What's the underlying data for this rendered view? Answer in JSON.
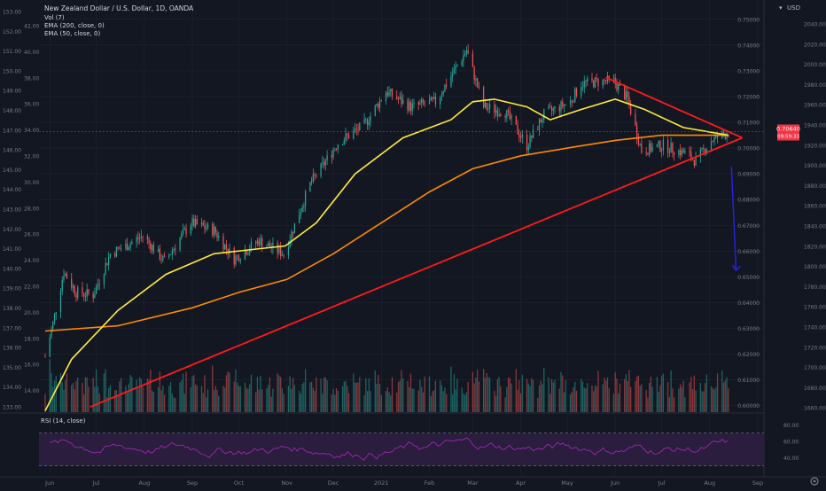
{
  "header": {
    "symbol_title": "New Zealand Dollar / U.S. Dollar, 1D, OANDA",
    "indicators": [
      "Vol (7)",
      "EMA (200, close, 0)",
      "EMA (50, close, 0)"
    ],
    "currency": "USD"
  },
  "rsi_label": "RSI (14, close)",
  "colors": {
    "background": "#131722",
    "grid": "#1f2430",
    "axis_text": "#787b86",
    "candle_up": "#26a69a",
    "candle_down": "#ef5350",
    "ema50": "#ffeb3b",
    "ema200": "#ff8a00",
    "trendline": "#ff1a1a",
    "projection_arrow": "#2323d8",
    "rsi_line": "#9c27b0",
    "rsi_band": "#2a1d3d",
    "price_label_bg": "#f23645"
  },
  "axes": {
    "left_outer_ticks": [
      "153.00",
      "152.00",
      "151.00",
      "150.00",
      "149.00",
      "148.00",
      "147.00",
      "146.00",
      "145.00",
      "144.00",
      "143.00",
      "142.00",
      "141.00",
      "140.00",
      "139.00",
      "138.00",
      "137.00",
      "136.00",
      "135.00",
      "134.00",
      "133.00"
    ],
    "left_inner_ticks": [
      "42.00",
      "40.00",
      "38.00",
      "36.00",
      "34.00",
      "32.00",
      "30.00",
      "28.00",
      "26.00",
      "24.00",
      "22.00",
      "20.00",
      "18.00",
      "16.00",
      "14.00"
    ],
    "right_price_ticks": [
      "0.75000",
      "0.74000",
      "0.73000",
      "0.72000",
      "0.71000",
      "0.70000",
      "0.69000",
      "0.68000",
      "0.67000",
      "0.66000",
      "0.65000",
      "0.64000",
      "0.63000",
      "0.62000",
      "0.61000",
      "0.60000"
    ],
    "right_outer_ticks": [
      "2040.00",
      "2020.00",
      "2000.00",
      "1980.00",
      "1960.00",
      "1940.00",
      "1920.00",
      "1900.00",
      "1880.00",
      "1860.00",
      "1840.00",
      "1820.00",
      "1800.00",
      "1780.00",
      "1760.00",
      "1740.00",
      "1720.00",
      "1700.00",
      "1680.00",
      "1660.00"
    ],
    "rsi_ticks": [
      "80.00",
      "60.00",
      "40.00"
    ],
    "x_ticks": [
      "Jun",
      "Jul",
      "Aug",
      "Sep",
      "Oct",
      "Nov",
      "Dec",
      "2021",
      "Feb",
      "Mar",
      "Apr",
      "May",
      "Jun",
      "Jul",
      "Aug",
      "Sep"
    ]
  },
  "price_labels": {
    "current": "0.70640",
    "countdown": "09:59:33"
  },
  "chart_data": {
    "type": "candlestick",
    "title": "New Zealand Dollar / U.S. Dollar, 1D, OANDA",
    "ylim": [
      0.5975,
      0.7575
    ],
    "rsi_ylim": [
      20,
      90
    ],
    "rsi_band": [
      30,
      70
    ],
    "current_price": 0.7064,
    "price_anchors": [
      [
        "2020-05-29",
        0.619
      ],
      [
        "2020-06-03",
        0.632
      ],
      [
        "2020-06-10",
        0.652
      ],
      [
        "2020-06-18",
        0.644
      ],
      [
        "2020-06-29",
        0.643
      ],
      [
        "2020-07-10",
        0.659
      ],
      [
        "2020-07-20",
        0.662
      ],
      [
        "2020-07-31",
        0.666
      ],
      [
        "2020-08-14",
        0.656
      ],
      [
        "2020-08-31",
        0.671
      ],
      [
        "2020-09-15",
        0.668
      ],
      [
        "2020-09-28",
        0.657
      ],
      [
        "2020-10-14",
        0.664
      ],
      [
        "2020-10-30",
        0.659
      ],
      [
        "2020-11-16",
        0.686
      ],
      [
        "2020-12-04",
        0.702
      ],
      [
        "2020-12-21",
        0.709
      ],
      [
        "2021-01-04",
        0.722
      ],
      [
        "2021-01-20",
        0.716
      ],
      [
        "2021-02-05",
        0.718
      ],
      [
        "2021-02-25",
        0.738
      ],
      [
        "2021-03-08",
        0.716
      ],
      [
        "2021-03-22",
        0.714
      ],
      [
        "2021-04-05",
        0.701
      ],
      [
        "2021-04-16",
        0.713
      ],
      [
        "2021-05-03",
        0.718
      ],
      [
        "2021-05-10",
        0.725
      ],
      [
        "2021-05-25",
        0.726
      ],
      [
        "2021-05-31",
        0.726
      ],
      [
        "2021-06-09",
        0.719
      ],
      [
        "2021-06-18",
        0.699
      ],
      [
        "2021-07-02",
        0.701
      ],
      [
        "2021-07-16",
        0.698
      ],
      [
        "2021-07-23",
        0.695
      ],
      [
        "2021-08-02",
        0.703
      ],
      [
        "2021-08-13",
        0.706
      ]
    ],
    "ema50_anchors": [
      [
        "2020-05-29",
        0.598
      ],
      [
        "2020-06-15",
        0.618
      ],
      [
        "2020-07-15",
        0.637
      ],
      [
        "2020-08-15",
        0.651
      ],
      [
        "2020-09-15",
        0.659
      ],
      [
        "2020-10-15",
        0.661
      ],
      [
        "2020-10-31",
        0.662
      ],
      [
        "2020-11-20",
        0.671
      ],
      [
        "2020-12-15",
        0.69
      ],
      [
        "2021-01-15",
        0.704
      ],
      [
        "2021-02-15",
        0.711
      ],
      [
        "2021-03-01",
        0.718
      ],
      [
        "2021-03-15",
        0.719
      ],
      [
        "2021-04-05",
        0.716
      ],
      [
        "2021-04-20",
        0.711
      ],
      [
        "2021-05-10",
        0.715
      ],
      [
        "2021-06-01",
        0.719
      ],
      [
        "2021-06-20",
        0.715
      ],
      [
        "2021-07-15",
        0.708
      ],
      [
        "2021-08-13",
        0.705
      ]
    ],
    "ema200_anchors": [
      [
        "2020-05-29",
        0.629
      ],
      [
        "2020-07-15",
        0.631
      ],
      [
        "2020-09-01",
        0.638
      ],
      [
        "2020-10-01",
        0.644
      ],
      [
        "2020-11-01",
        0.649
      ],
      [
        "2020-12-01",
        0.659
      ],
      [
        "2021-01-01",
        0.671
      ],
      [
        "2021-02-01",
        0.683
      ],
      [
        "2021-03-01",
        0.692
      ],
      [
        "2021-04-01",
        0.697
      ],
      [
        "2021-05-01",
        0.7
      ],
      [
        "2021-06-01",
        0.703
      ],
      [
        "2021-07-01",
        0.705
      ],
      [
        "2021-08-13",
        0.705
      ]
    ],
    "trendlines": [
      {
        "from": [
          "2020-06-27",
          0.5995
        ],
        "to": [
          "2021-08-22",
          0.704
        ]
      },
      {
        "from": [
          "2021-05-26",
          0.7274
        ],
        "to": [
          "2021-08-22",
          0.704
        ]
      }
    ],
    "projection_arrow": {
      "from": [
        "2021-08-15",
        0.693
      ],
      "to": [
        "2021-08-18",
        0.6525
      ]
    },
    "x_ticks": [
      [
        "Jun",
        "2020-06-01"
      ],
      [
        "Jul",
        "2020-07-01"
      ],
      [
        "Aug",
        "2020-08-01"
      ],
      [
        "Sep",
        "2020-09-01"
      ],
      [
        "Oct",
        "2020-10-01"
      ],
      [
        "Nov",
        "2020-11-01"
      ],
      [
        "Dec",
        "2020-12-01"
      ],
      [
        "2021",
        "2021-01-01"
      ],
      [
        "Feb",
        "2021-02-01"
      ],
      [
        "Mar",
        "2021-03-01"
      ],
      [
        "Apr",
        "2021-04-01"
      ],
      [
        "May",
        "2021-05-01"
      ],
      [
        "Jun",
        "2021-06-01"
      ],
      [
        "Jul",
        "2021-07-01"
      ],
      [
        "Aug",
        "2021-08-01"
      ],
      [
        "Sep",
        "2021-09-01"
      ]
    ]
  }
}
